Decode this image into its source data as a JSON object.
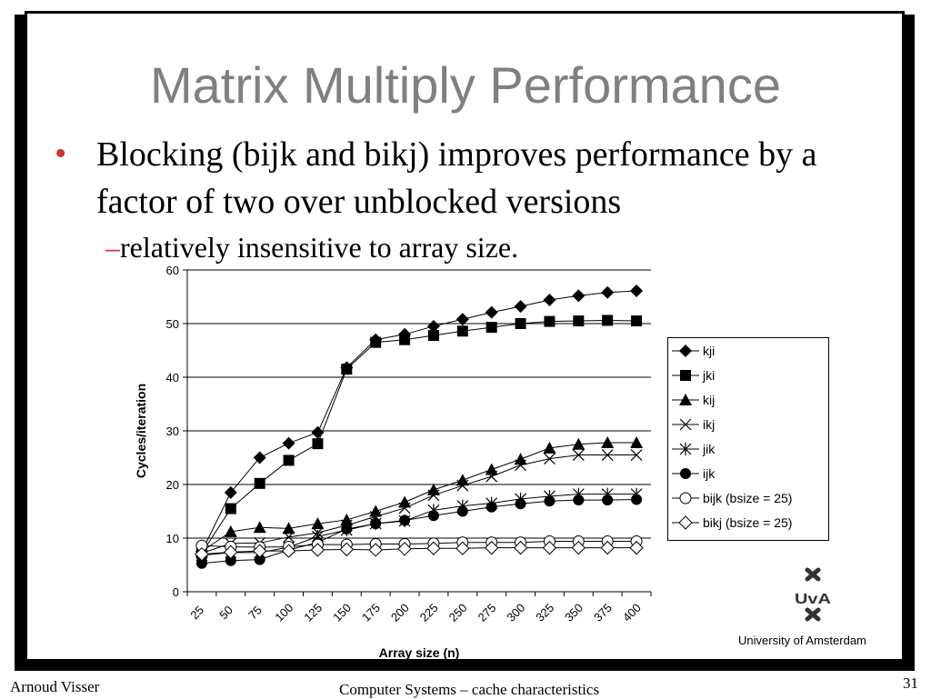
{
  "slide": {
    "title": "Matrix Multiply Performance",
    "bullet_marker": "•",
    "bullet_text": "Blocking (bijk and bikj) improves performance by a factor of two over unblocked versions",
    "sub_bullet_marker": "–",
    "sub_bullet_text": "relatively insensitive to array size."
  },
  "logo": {
    "text": "University  of Amsterdam",
    "mark": "UvA",
    "icon": "uva-crosses-logo"
  },
  "footer": {
    "author": "Arnoud Visser",
    "course": "Computer Systems – cache characteristics",
    "page": "31"
  },
  "chart_data": {
    "type": "line",
    "xlabel": "Array size (n)",
    "ylabel": "Cycles/iteration",
    "ylim": [
      0,
      60
    ],
    "yticks": [
      0,
      10,
      20,
      30,
      40,
      50,
      60
    ],
    "grid": true,
    "legend_position": "right",
    "x": [
      25,
      50,
      75,
      100,
      125,
      150,
      175,
      200,
      225,
      250,
      275,
      300,
      325,
      350,
      375,
      400
    ],
    "xtick_labels": [
      "25",
      "50",
      "75",
      "100",
      "125",
      "150",
      "175",
      "200",
      "225",
      "250",
      "275",
      "300",
      "325",
      "350",
      "375",
      "400"
    ],
    "series": [
      {
        "name": "kji",
        "marker": "diamond-filled",
        "values": [
          7.5,
          18.5,
          25,
          27.7,
          29.7,
          41.8,
          47,
          48,
          49.5,
          50.8,
          52.1,
          53.2,
          54.4,
          55.2,
          55.8,
          56.1
        ]
      },
      {
        "name": "jki",
        "marker": "square-filled",
        "values": [
          7.2,
          15.5,
          20.2,
          24.5,
          27.6,
          41.5,
          46.5,
          47,
          47.8,
          48.6,
          49.3,
          50,
          50.4,
          50.5,
          50.6,
          50.5
        ]
      },
      {
        "name": "kij",
        "marker": "triangle-filled",
        "values": [
          7.5,
          11.2,
          12,
          11.8,
          12.7,
          13.4,
          15,
          16.7,
          19,
          20.8,
          22.8,
          24.7,
          26.8,
          27.5,
          27.8,
          27.8
        ]
      },
      {
        "name": "ikj",
        "marker": "x",
        "values": [
          7.2,
          9,
          9.1,
          10.2,
          11,
          12.4,
          14,
          15.6,
          18,
          19.8,
          21.5,
          23.6,
          24.8,
          25.5,
          25.5,
          25.5
        ]
      },
      {
        "name": "jik",
        "marker": "star",
        "values": [
          6.8,
          7.3,
          7.3,
          8.3,
          10.3,
          11.5,
          12.7,
          13.2,
          15.2,
          16,
          16.5,
          17.3,
          17.8,
          18.2,
          18.2,
          18.2
        ]
      },
      {
        "name": "ijk",
        "marker": "circle-filled",
        "values": [
          5.3,
          5.8,
          6,
          7.8,
          9.2,
          11.7,
          12.7,
          13.3,
          14.2,
          15,
          15.8,
          16.4,
          16.9,
          17.1,
          17.1,
          17.2
        ]
      },
      {
        "name": "bijk (bsize = 25)",
        "marker": "circle-open",
        "values": [
          8.6,
          8.4,
          8.3,
          8.4,
          8.8,
          8.8,
          8.9,
          8.9,
          9,
          9.2,
          9.2,
          9.2,
          9.4,
          9.4,
          9.4,
          9.4
        ]
      },
      {
        "name": "bikj (bsize = 25)",
        "marker": "diamond-open",
        "values": [
          7,
          7.4,
          7.6,
          7.6,
          7.8,
          7.9,
          7.8,
          8,
          8.1,
          8.1,
          8.2,
          8.2,
          8.2,
          8.2,
          8.2,
          8.2
        ]
      }
    ]
  }
}
